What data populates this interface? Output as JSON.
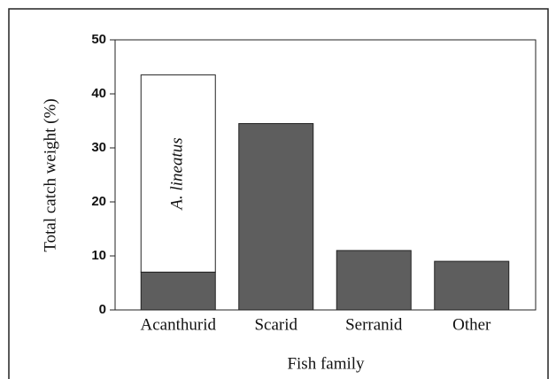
{
  "chart_data": {
    "type": "stacked_bar",
    "x_label": "Fish family",
    "y_label": "Total catch weight (%)",
    "categories": [
      "Acanthurid",
      "Scarid",
      "Serranid",
      "Other"
    ],
    "series": [
      {
        "color": "#5e5e5e",
        "values": [
          7,
          34.5,
          11,
          9
        ]
      },
      {
        "name": "A. lineatus",
        "color": "#ffffff",
        "values": [
          36.5,
          null,
          null,
          null
        ]
      }
    ],
    "ylim": [
      0,
      50
    ],
    "yticks": [
      0,
      10,
      20,
      30,
      40,
      50
    ],
    "grid": false
  }
}
